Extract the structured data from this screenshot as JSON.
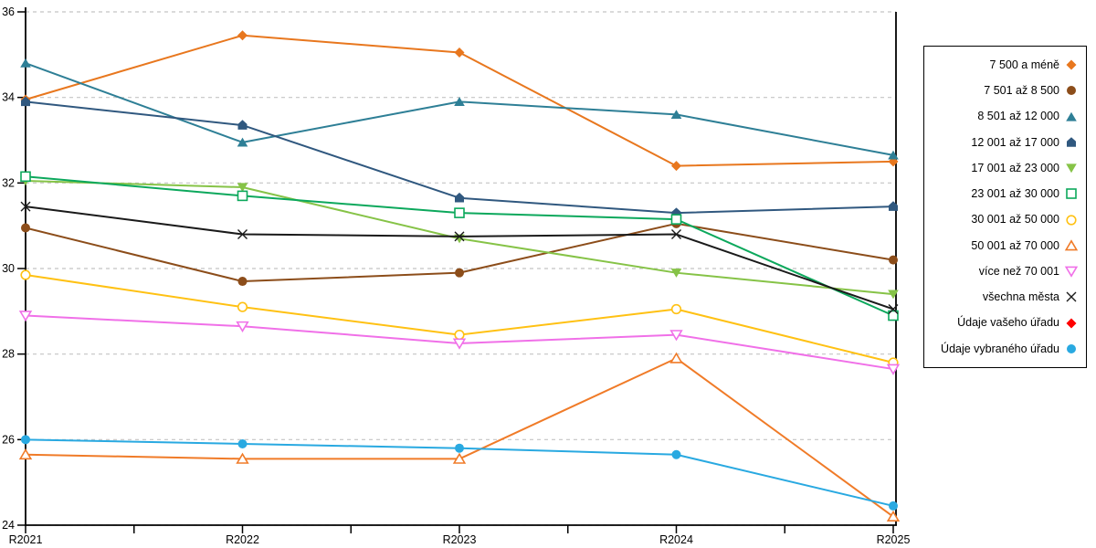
{
  "chart_data": {
    "type": "line",
    "title": "",
    "xlabel": "",
    "ylabel": "",
    "x_categories": [
      "R2021",
      "R2022",
      "R2023",
      "R2024",
      "R2025"
    ],
    "ylim": [
      24,
      36
    ],
    "yticks": [
      24,
      26,
      28,
      30,
      32,
      34,
      36
    ],
    "grid": "horizontal-dashed",
    "gridline_color": "#c4c4c4",
    "axis_color": "#000000",
    "legend_position": "right",
    "series": [
      {
        "name": "7 500 a méně",
        "color": "#e8771e",
        "marker": "diamond",
        "values": [
          33.95,
          35.45,
          35.05,
          32.4,
          32.5
        ]
      },
      {
        "name": "7 501 až 8 500",
        "color": "#8c4d1a",
        "marker": "circle",
        "values": [
          30.95,
          29.7,
          29.9,
          31.05,
          30.2
        ]
      },
      {
        "name": "8 501 až 12 000",
        "color": "#2e7f96",
        "marker": "triangle-up",
        "values": [
          34.8,
          32.95,
          33.9,
          33.6,
          32.65
        ]
      },
      {
        "name": "12 001 až 17 000",
        "color": "#30587f",
        "marker": "pentagon",
        "values": [
          33.9,
          33.35,
          31.65,
          31.3,
          31.45
        ]
      },
      {
        "name": "17 001 až 23 000",
        "color": "#86c347",
        "marker": "triangle-down",
        "values": [
          32.05,
          31.9,
          30.7,
          29.9,
          29.4
        ]
      },
      {
        "name": "23 001 až 30 000",
        "color": "#0ca85c",
        "marker": "square-open",
        "values": [
          32.15,
          31.7,
          31.3,
          31.15,
          28.9
        ]
      },
      {
        "name": "30 001 až 50 000",
        "color": "#ffc113",
        "marker": "circle-open",
        "values": [
          29.85,
          29.1,
          28.45,
          29.05,
          27.8
        ]
      },
      {
        "name": "50 001 až 70 000",
        "color": "#f07b28",
        "marker": "triangle-up-open",
        "values": [
          25.65,
          25.55,
          25.55,
          27.9,
          24.2
        ]
      },
      {
        "name": "více než 70 001",
        "color": "#f070e8",
        "marker": "triangle-down-open",
        "values": [
          28.9,
          28.65,
          28.25,
          28.45,
          27.65
        ]
      },
      {
        "name": "všechna města",
        "color": "#1a1a1a",
        "marker": "x",
        "values": [
          31.45,
          30.8,
          30.75,
          30.8,
          29.05
        ]
      },
      {
        "name": "Údaje vašeho úřadu",
        "color": "#ff0000",
        "marker": "diamond",
        "values": []
      },
      {
        "name": "Údaje vybraného úřadu",
        "color": "#29a9e1",
        "marker": "circle",
        "values": [
          26.0,
          25.9,
          25.8,
          25.65,
          24.45
        ]
      }
    ]
  }
}
